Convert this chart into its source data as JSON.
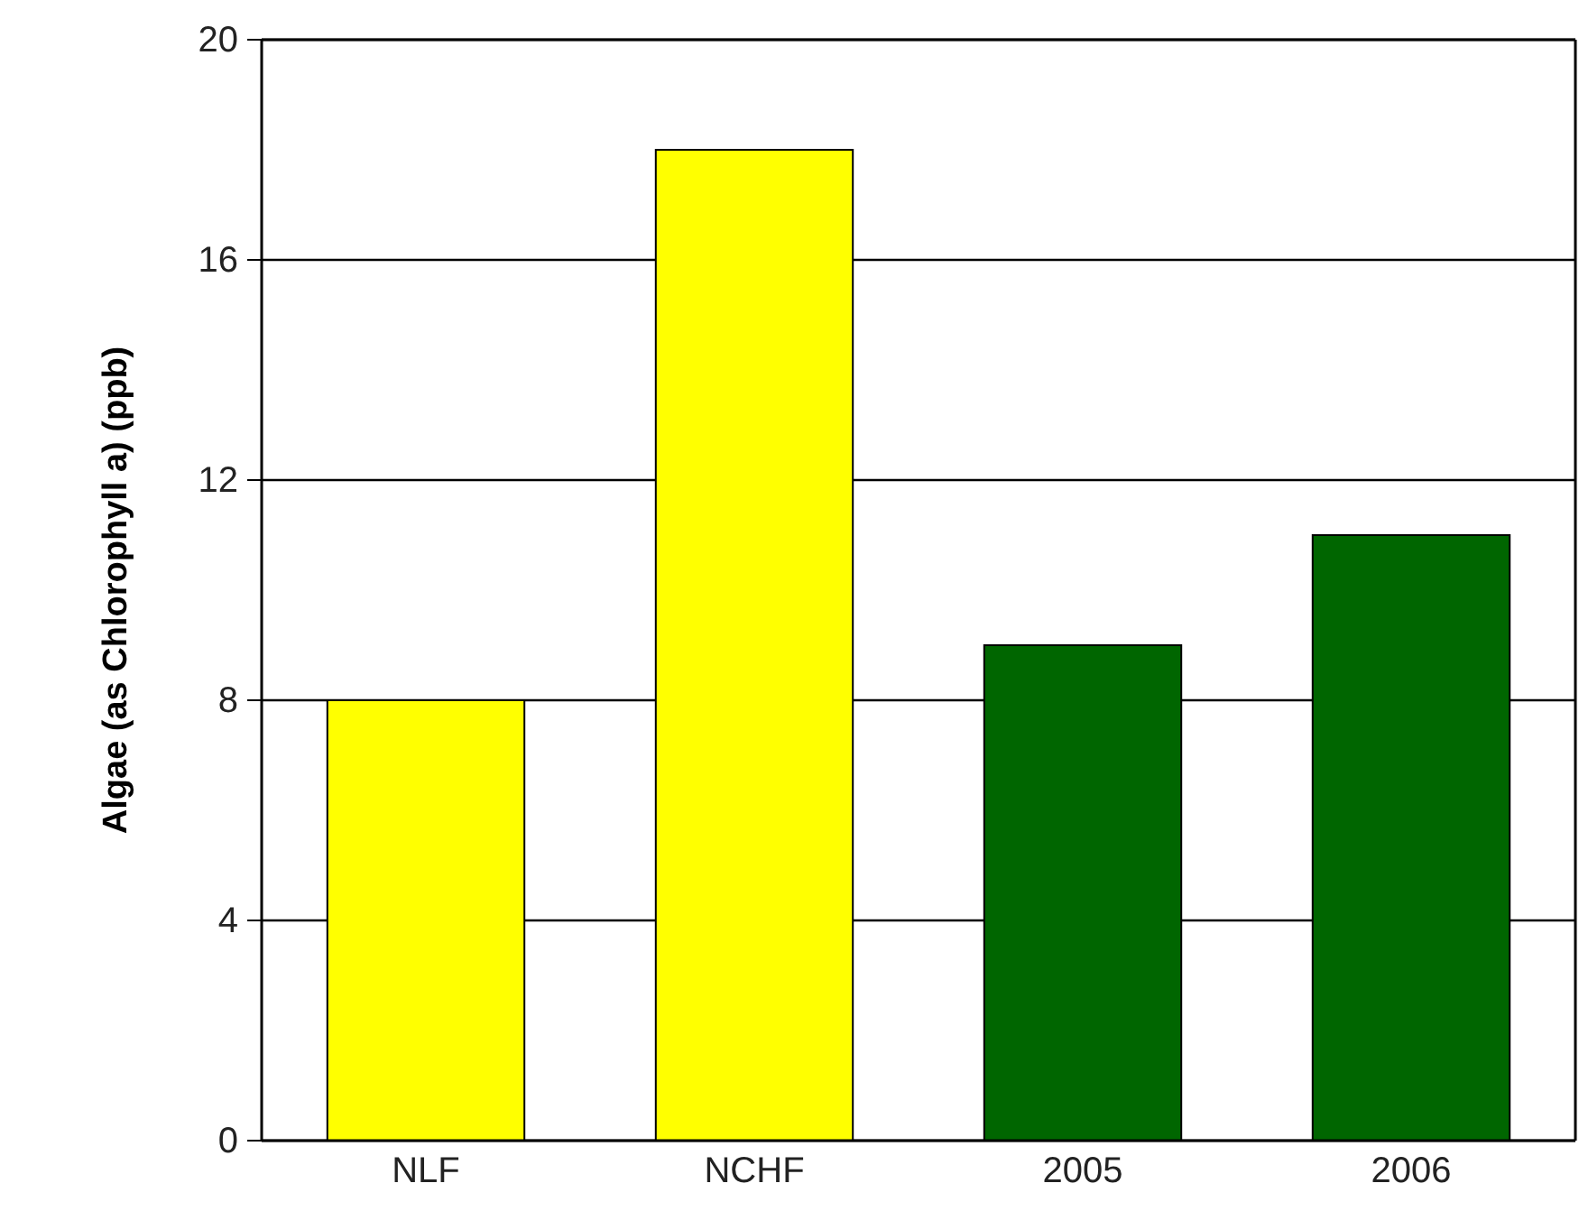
{
  "chart_data": {
    "type": "bar",
    "ylabel": "Algae (as Chlorophyll a) (ppb)",
    "categories": [
      "NLF",
      "NCHF",
      "2005",
      "2006"
    ],
    "values": [
      8,
      18,
      9,
      11
    ],
    "colors": [
      "#ffff00",
      "#ffff00",
      "#006600",
      "#006600"
    ],
    "ylim": [
      0,
      20
    ],
    "yticks": [
      0,
      4,
      8,
      12,
      16,
      20
    ],
    "grid": "y"
  }
}
